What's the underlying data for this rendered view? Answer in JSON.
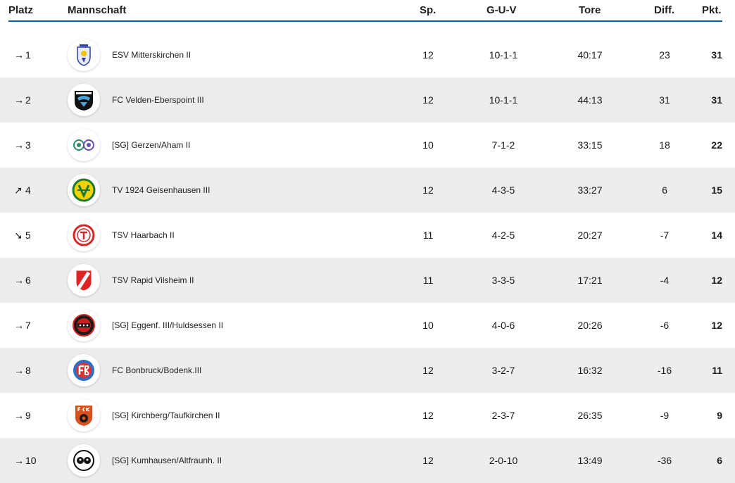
{
  "columns": {
    "platz": "Platz",
    "mannschaft": "Mannschaft",
    "sp": "Sp.",
    "guv": "G-U-V",
    "tore": "Tore",
    "diff": "Diff.",
    "pkt": "Pkt."
  },
  "rows": [
    {
      "arrow": "→",
      "trend": "same",
      "rank": "1",
      "team": "ESV Mitterskirchen II",
      "sp": "12",
      "guv": "10-1-1",
      "tore": "40:17",
      "diff": "23",
      "pkt": "31",
      "logo_icon": "esv-mitterskirchen-crest-icon"
    },
    {
      "arrow": "→",
      "trend": "same",
      "rank": "2",
      "team": "FC Velden-Eberspoint III",
      "sp": "12",
      "guv": "10-1-1",
      "tore": "44:13",
      "diff": "31",
      "pkt": "31",
      "logo_icon": "fc-velden-crest-icon"
    },
    {
      "arrow": "→",
      "trend": "same",
      "rank": "3",
      "team": "[SG] Gerzen/Aham II",
      "sp": "10",
      "guv": "7-1-2",
      "tore": "33:15",
      "diff": "18",
      "pkt": "22",
      "logo_icon": "sg-gerzen-aham-crest-icon"
    },
    {
      "arrow": "↗",
      "trend": "up",
      "rank": "4",
      "team": "TV 1924 Geisenhausen III",
      "sp": "12",
      "guv": "4-3-5",
      "tore": "33:27",
      "diff": "6",
      "pkt": "15",
      "logo_icon": "tv-geisenhausen-crest-icon"
    },
    {
      "arrow": "↘",
      "trend": "down",
      "rank": "5",
      "team": "TSV Haarbach II",
      "sp": "11",
      "guv": "4-2-5",
      "tore": "20:27",
      "diff": "-7",
      "pkt": "14",
      "logo_icon": "tsv-haarbach-crest-icon"
    },
    {
      "arrow": "→",
      "trend": "same",
      "rank": "6",
      "team": "TSV Rapid Vilsheim II",
      "sp": "11",
      "guv": "3-3-5",
      "tore": "17:21",
      "diff": "-4",
      "pkt": "12",
      "logo_icon": "tsv-rapid-vilsheim-crest-icon"
    },
    {
      "arrow": "→",
      "trend": "same",
      "rank": "7",
      "team": "[SG] Eggenf. III/Huldsessen II",
      "sp": "10",
      "guv": "4-0-6",
      "tore": "20:26",
      "diff": "-6",
      "pkt": "12",
      "logo_icon": "ssv-eggenfelden-crest-icon"
    },
    {
      "arrow": "→",
      "trend": "same",
      "rank": "8",
      "team": "FC Bonbruck/Bodenk.III",
      "sp": "12",
      "guv": "3-2-7",
      "tore": "16:32",
      "diff": "-16",
      "pkt": "11",
      "logo_icon": "fc-bonbruck-crest-icon"
    },
    {
      "arrow": "→",
      "trend": "same",
      "rank": "9",
      "team": "[SG] Kirchberg/Taufkirchen II",
      "sp": "12",
      "guv": "2-3-7",
      "tore": "26:35",
      "diff": "-9",
      "pkt": "9",
      "logo_icon": "fck-kirchberg-crest-icon"
    },
    {
      "arrow": "→",
      "trend": "same",
      "rank": "10",
      "team": "[SG] Kumhausen/Altfraunh. II",
      "sp": "12",
      "guv": "2-0-10",
      "tore": "13:49",
      "diff": "-36",
      "pkt": "6",
      "logo_icon": "sg-kumhausen-crest-icon"
    }
  ],
  "colors": {
    "accent_line": "#0b5fa5",
    "row_alt_bg": "#ededed"
  }
}
